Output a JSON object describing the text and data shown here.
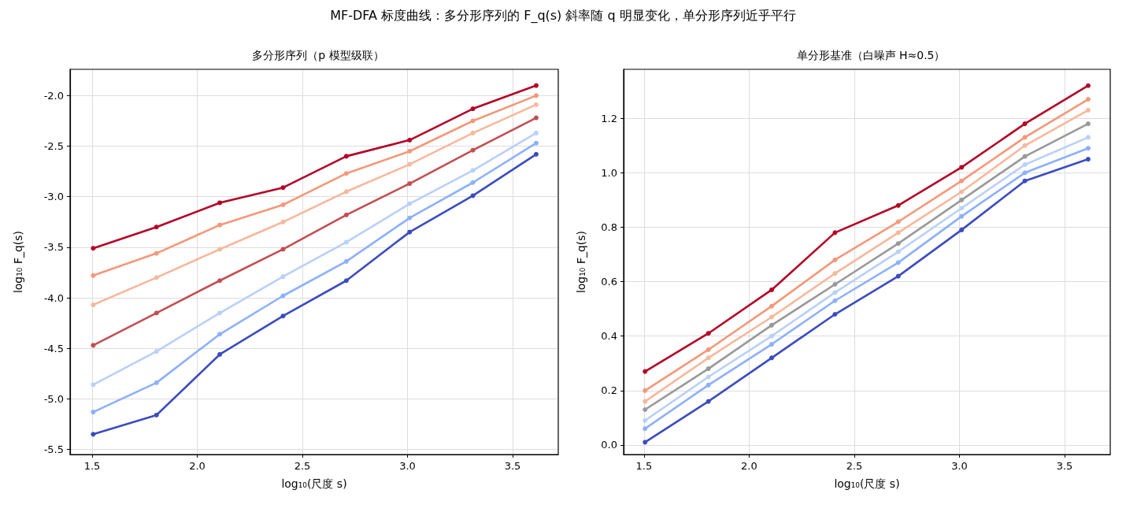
{
  "chart_data": [
    {
      "type": "line",
      "title": "多分形序列（p 模型级联）",
      "xlabel": "log₁₀(尺度 s)",
      "ylabel": "log₁₀ F_q(s)",
      "annotations": [
        "MF-DFA 标度曲线：多分形序列的 F_q(s) 斜率随 q 明显变化，单分形序列近乎平行"
      ],
      "x": [
        1.505,
        1.806,
        2.107,
        2.408,
        2.709,
        3.01,
        3.311,
        3.612
      ],
      "series": [
        {
          "color": "#b40426",
          "values": [
            -3.51,
            -3.3,
            -3.06,
            -2.91,
            -2.6,
            -2.44,
            -2.13,
            -1.9
          ]
        },
        {
          "color": "#f4987a",
          "values": [
            -3.78,
            -3.56,
            -3.28,
            -3.08,
            -2.77,
            -2.55,
            -2.25,
            -2.0
          ]
        },
        {
          "color": "#f7b89c",
          "values": [
            -4.07,
            -3.8,
            -3.52,
            -3.25,
            -2.95,
            -2.68,
            -2.37,
            -2.09
          ]
        },
        {
          "color": "#c44e52",
          "values": [
            -4.47,
            -4.15,
            -3.83,
            -3.52,
            -3.18,
            -2.87,
            -2.54,
            -2.22
          ]
        },
        {
          "color": "#b9d0f9",
          "values": [
            -4.86,
            -4.53,
            -4.15,
            -3.79,
            -3.45,
            -3.07,
            -2.74,
            -2.37
          ]
        },
        {
          "color": "#8db0fe",
          "values": [
            -5.13,
            -4.84,
            -4.36,
            -3.98,
            -3.64,
            -3.21,
            -2.86,
            -2.47
          ]
        },
        {
          "color": "#3b4cc0",
          "values": [
            -5.35,
            -5.16,
            -4.56,
            -4.18,
            -3.83,
            -3.35,
            -2.99,
            -2.58
          ]
        }
      ],
      "xlim": [
        1.395,
        3.717
      ],
      "xticks": [
        {
          "value": 1.5,
          "label": "1.5"
        },
        {
          "value": 2,
          "label": "2.0"
        },
        {
          "value": 2.5,
          "label": "2.5"
        },
        {
          "value": 3,
          "label": "3.0"
        },
        {
          "value": 3.5,
          "label": "3.5"
        }
      ],
      "ylim": [
        -5.55,
        -1.74
      ],
      "yticks": [
        {
          "value": -5.5,
          "label": "-5.5"
        },
        {
          "value": -5,
          "label": "-5.0"
        },
        {
          "value": -4.5,
          "label": "-4.5"
        },
        {
          "value": -4,
          "label": "-4.0"
        },
        {
          "value": -3.5,
          "label": "-3.5"
        },
        {
          "value": -3,
          "label": "-3.0"
        },
        {
          "value": -2.5,
          "label": "-2.5"
        },
        {
          "value": -2,
          "label": "-2.0"
        }
      ],
      "grid": true,
      "marker": "circle",
      "line_style": "solid"
    },
    {
      "type": "line",
      "title": "单分形基准（白噪声 H≈0.5）",
      "xlabel": "log₁₀(尺度 s)",
      "ylabel": "log₁₀ F_q(s)",
      "x": [
        1.505,
        1.806,
        2.107,
        2.408,
        2.709,
        3.01,
        3.311,
        3.612
      ],
      "series": [
        {
          "color": "#b40426",
          "values": [
            0.27,
            0.41,
            0.57,
            0.78,
            0.88,
            1.02,
            1.18,
            1.32
          ]
        },
        {
          "color": "#f4987a",
          "values": [
            0.2,
            0.35,
            0.51,
            0.68,
            0.82,
            0.97,
            1.13,
            1.27
          ]
        },
        {
          "color": "#f7b89c",
          "values": [
            0.16,
            0.32,
            0.47,
            0.63,
            0.78,
            0.93,
            1.1,
            1.23
          ]
        },
        {
          "color": "#999999",
          "values": [
            0.13,
            0.28,
            0.44,
            0.59,
            0.74,
            0.9,
            1.06,
            1.18
          ]
        },
        {
          "color": "#b9d0f9",
          "values": [
            0.09,
            0.25,
            0.4,
            0.56,
            0.71,
            0.87,
            1.03,
            1.13
          ]
        },
        {
          "color": "#8db0fe",
          "values": [
            0.06,
            0.22,
            0.37,
            0.53,
            0.67,
            0.84,
            1.0,
            1.09
          ]
        },
        {
          "color": "#3b4cc0",
          "values": [
            0.01,
            0.16,
            0.32,
            0.48,
            0.62,
            0.79,
            0.97,
            1.05
          ]
        }
      ],
      "xlim": [
        1.403,
        3.717
      ],
      "xticks": [
        {
          "value": 1.5,
          "label": "1.5"
        },
        {
          "value": 2,
          "label": "2.0"
        },
        {
          "value": 2.5,
          "label": "2.5"
        },
        {
          "value": 3,
          "label": "3.0"
        },
        {
          "value": 3.5,
          "label": "3.5"
        }
      ],
      "ylim": [
        -0.035,
        1.38
      ],
      "yticks": [
        {
          "value": 0,
          "label": "0.0"
        },
        {
          "value": 0.2,
          "label": "0.2"
        },
        {
          "value": 0.4,
          "label": "0.4"
        },
        {
          "value": 0.6,
          "label": "0.6"
        },
        {
          "value": 0.8,
          "label": "0.8"
        },
        {
          "value": 1,
          "label": "1.0"
        },
        {
          "value": 1.2,
          "label": "1.2"
        }
      ],
      "grid": true,
      "marker": "circle",
      "line_style": "solid"
    }
  ]
}
